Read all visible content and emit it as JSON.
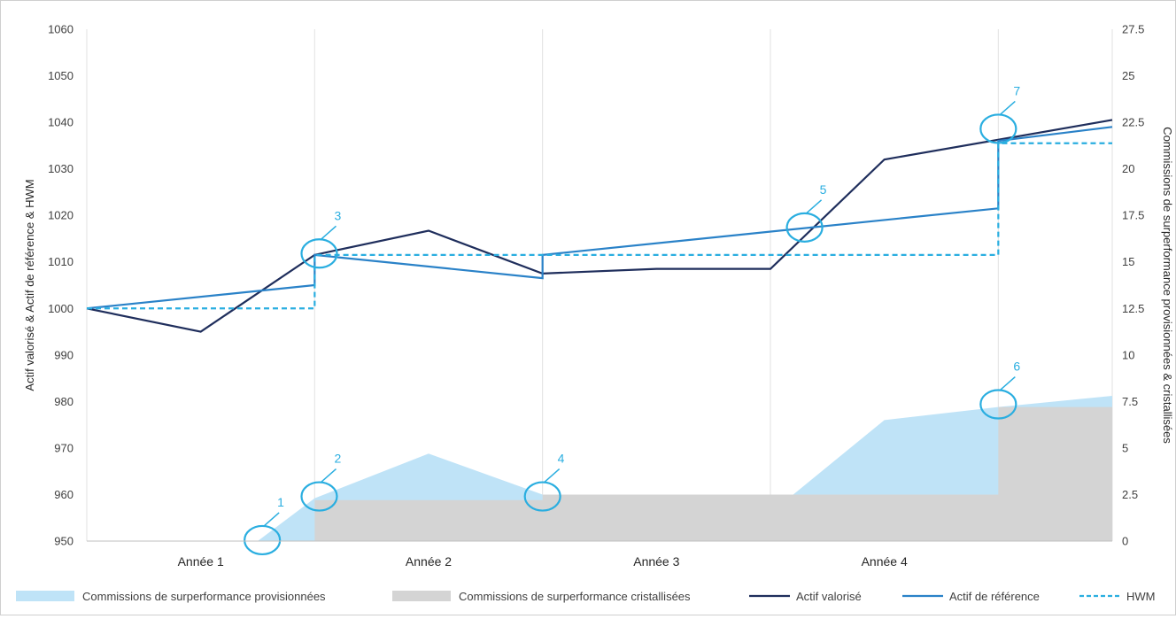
{
  "chart_data": {
    "type": "line",
    "categories": [
      "Année 1",
      "Année 2",
      "Année 3",
      "Année 4"
    ],
    "x_range": [
      0,
      4.5
    ],
    "left_axis": {
      "label": "Actif valorisé & Actif de référence & HWM",
      "min": 950,
      "max": 1060,
      "step": 10,
      "ticks": [
        "950",
        "960",
        "970",
        "980",
        "990",
        "1000",
        "1010",
        "1020",
        "1030",
        "1040",
        "1050",
        "1060"
      ]
    },
    "right_axis": {
      "label": "Commissions de surperformance provisionnées & cristallisées",
      "min": 0,
      "max": 27.5,
      "step": 2.5,
      "ticks": [
        "0",
        "2.5",
        "5",
        "7.5",
        "10",
        "12.5",
        "15",
        "17.5",
        "20",
        "22.5",
        "25",
        "27.5"
      ]
    },
    "grid": "vertical",
    "legend_position": "bottom",
    "colors": {
      "provisioned": "#bfe3f7",
      "crystallized": "#d4d4d4",
      "actif_valorise": "#1f2e5c",
      "actif_reference": "#2a82c8",
      "hwm": "#2aaee0",
      "annotation": "#2aaee0"
    },
    "series": [
      {
        "name": "Commissions de surperformance provisionnées",
        "kind": "area",
        "axis": "right",
        "x": [
          0,
          0.75,
          1,
          1.5,
          2,
          3.1,
          3.5,
          4,
          4,
          4.5
        ],
        "y": [
          0,
          0,
          2.3,
          4.7,
          2.5,
          2.5,
          6.5,
          7.2,
          7.2,
          7.8
        ]
      },
      {
        "name": "Commissions de surperformance cristallisées",
        "kind": "area",
        "axis": "right",
        "x": [
          0,
          1,
          1,
          2,
          2,
          4,
          4,
          4.5
        ],
        "y": [
          0,
          0,
          2.2,
          2.2,
          2.5,
          2.5,
          7.2,
          7.2
        ]
      },
      {
        "name": "Actif valorisé",
        "kind": "line",
        "axis": "left",
        "x": [
          0,
          0.5,
          1,
          1.5,
          2,
          2.5,
          3,
          3.5,
          4.5
        ],
        "y": [
          1000,
          995,
          1011.5,
          1016.7,
          1007.5,
          1008.5,
          1008.5,
          1032,
          1040.5
        ]
      },
      {
        "name": "Actif de référence",
        "kind": "line",
        "axis": "left",
        "x": [
          0,
          1,
          1,
          2,
          2,
          4,
          4,
          4.5
        ],
        "y": [
          1000,
          1005,
          1011.5,
          1006.5,
          1011.5,
          1021.5,
          1036,
          1039
        ]
      },
      {
        "name": "HWM",
        "kind": "dashed",
        "axis": "left",
        "x": [
          0,
          1,
          1,
          4,
          4,
          4.5
        ],
        "y": [
          1000,
          1000,
          1011.5,
          1011.5,
          1035.5,
          1035.5
        ]
      }
    ],
    "annotations": [
      {
        "label": "1",
        "x": 0.77,
        "y": 950.2
      },
      {
        "label": "2",
        "x": 1.02,
        "y": 959.6
      },
      {
        "label": "3",
        "x": 1.02,
        "y": 1011.8
      },
      {
        "label": "4",
        "x": 2.0,
        "y": 959.6
      },
      {
        "label": "5",
        "x": 3.15,
        "y": 1017.4
      },
      {
        "label": "6",
        "x": 4.0,
        "y": 979.4
      },
      {
        "label": "7",
        "x": 4.0,
        "y": 1038.6
      }
    ]
  }
}
